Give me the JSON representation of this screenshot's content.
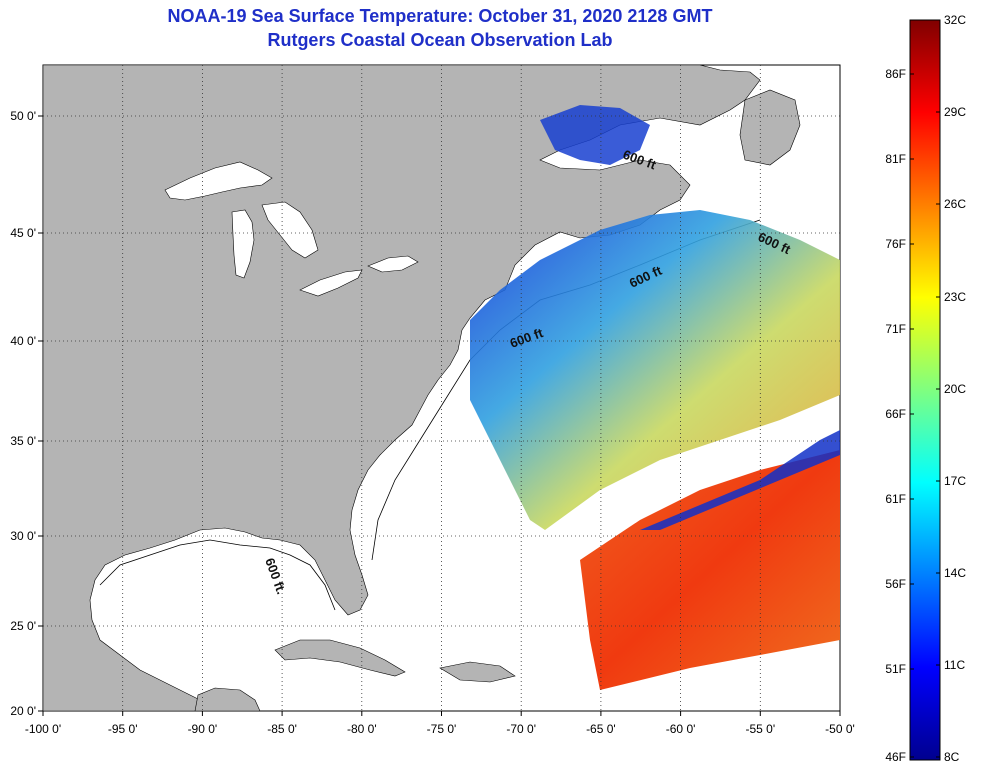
{
  "title": {
    "line1": "NOAA-19 Sea Surface Temperature:  October 31, 2020 2128 GMT",
    "line2": "Rutgers Coastal Ocean Observation Lab"
  },
  "map": {
    "lon_ticks": [
      "-100 0'",
      "-95 0'",
      "-90 0'",
      "-85 0'",
      "-80 0'",
      "-75 0'",
      "-70 0'",
      "-65 0'",
      "-60 0'",
      "-55 0'",
      "-50 0'"
    ],
    "lat_ticks": [
      "50 0'",
      "45 0'",
      "40 0'",
      "35 0'",
      "30 0'",
      "25 0'",
      "20 0'"
    ],
    "contour_label": "600 ft",
    "contour_label_gulf": "600 ft.",
    "colors": {
      "land": "#b4b4b4",
      "no_data": "#ffffff",
      "grid": "#333333"
    }
  },
  "colorbar": {
    "fahrenheit": [
      "86F",
      "81F",
      "76F",
      "71F",
      "66F",
      "61F",
      "56F",
      "51F",
      "46F"
    ],
    "celsius": [
      "32C",
      "29C",
      "26C",
      "23C",
      "20C",
      "17C",
      "14C",
      "11C",
      "8C"
    ]
  }
}
